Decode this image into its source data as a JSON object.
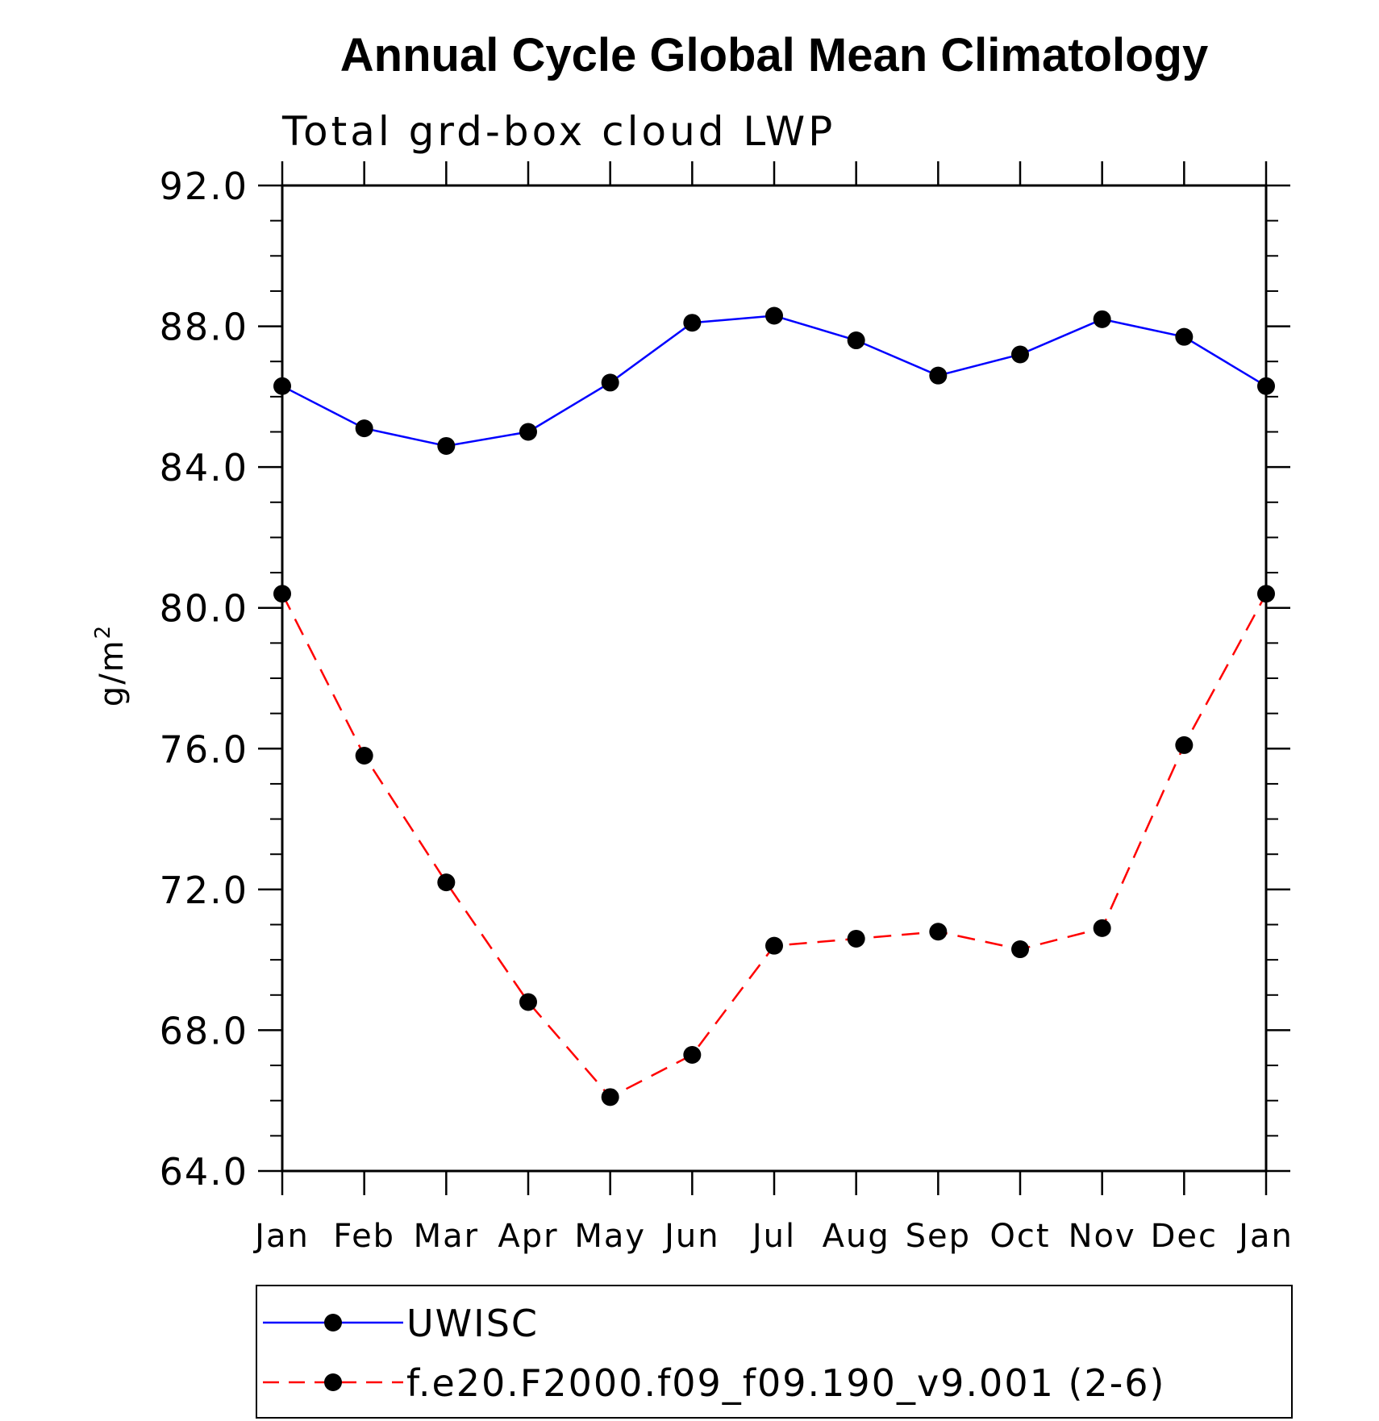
{
  "chart_data": {
    "type": "line",
    "title": "Annual Cycle Global Mean Climatology",
    "subtitle": "Total grd-box cloud LWP",
    "ylabel": "g/m",
    "ylabel_superscript": "2",
    "xlabel": "",
    "categories": [
      "Jan",
      "Feb",
      "Mar",
      "Apr",
      "May",
      "Jun",
      "Jul",
      "Aug",
      "Sep",
      "Oct",
      "Nov",
      "Dec",
      "Jan"
    ],
    "ylim": [
      64.0,
      92.0
    ],
    "yticks": [
      "92.0",
      "88.0",
      "84.0",
      "80.0",
      "76.0",
      "72.0",
      "68.0",
      "64.0"
    ],
    "grid": false,
    "legend_position": "bottom",
    "series": [
      {
        "name": "UWISC",
        "color": "#0000ff",
        "line_style": "solid",
        "marker": "filled-circle",
        "values": [
          86.3,
          85.1,
          84.6,
          85.0,
          86.4,
          88.1,
          88.3,
          87.6,
          86.6,
          87.2,
          88.2,
          87.7,
          86.3
        ]
      },
      {
        "name": "f.e20.F2000.f09_f09.190_v9.001 (2-6)",
        "color": "#ff0000",
        "line_style": "dashed",
        "marker": "filled-circle",
        "values": [
          80.4,
          75.8,
          72.2,
          68.8,
          66.1,
          67.3,
          70.4,
          70.6,
          70.8,
          70.3,
          70.9,
          76.1,
          80.4
        ]
      }
    ]
  }
}
